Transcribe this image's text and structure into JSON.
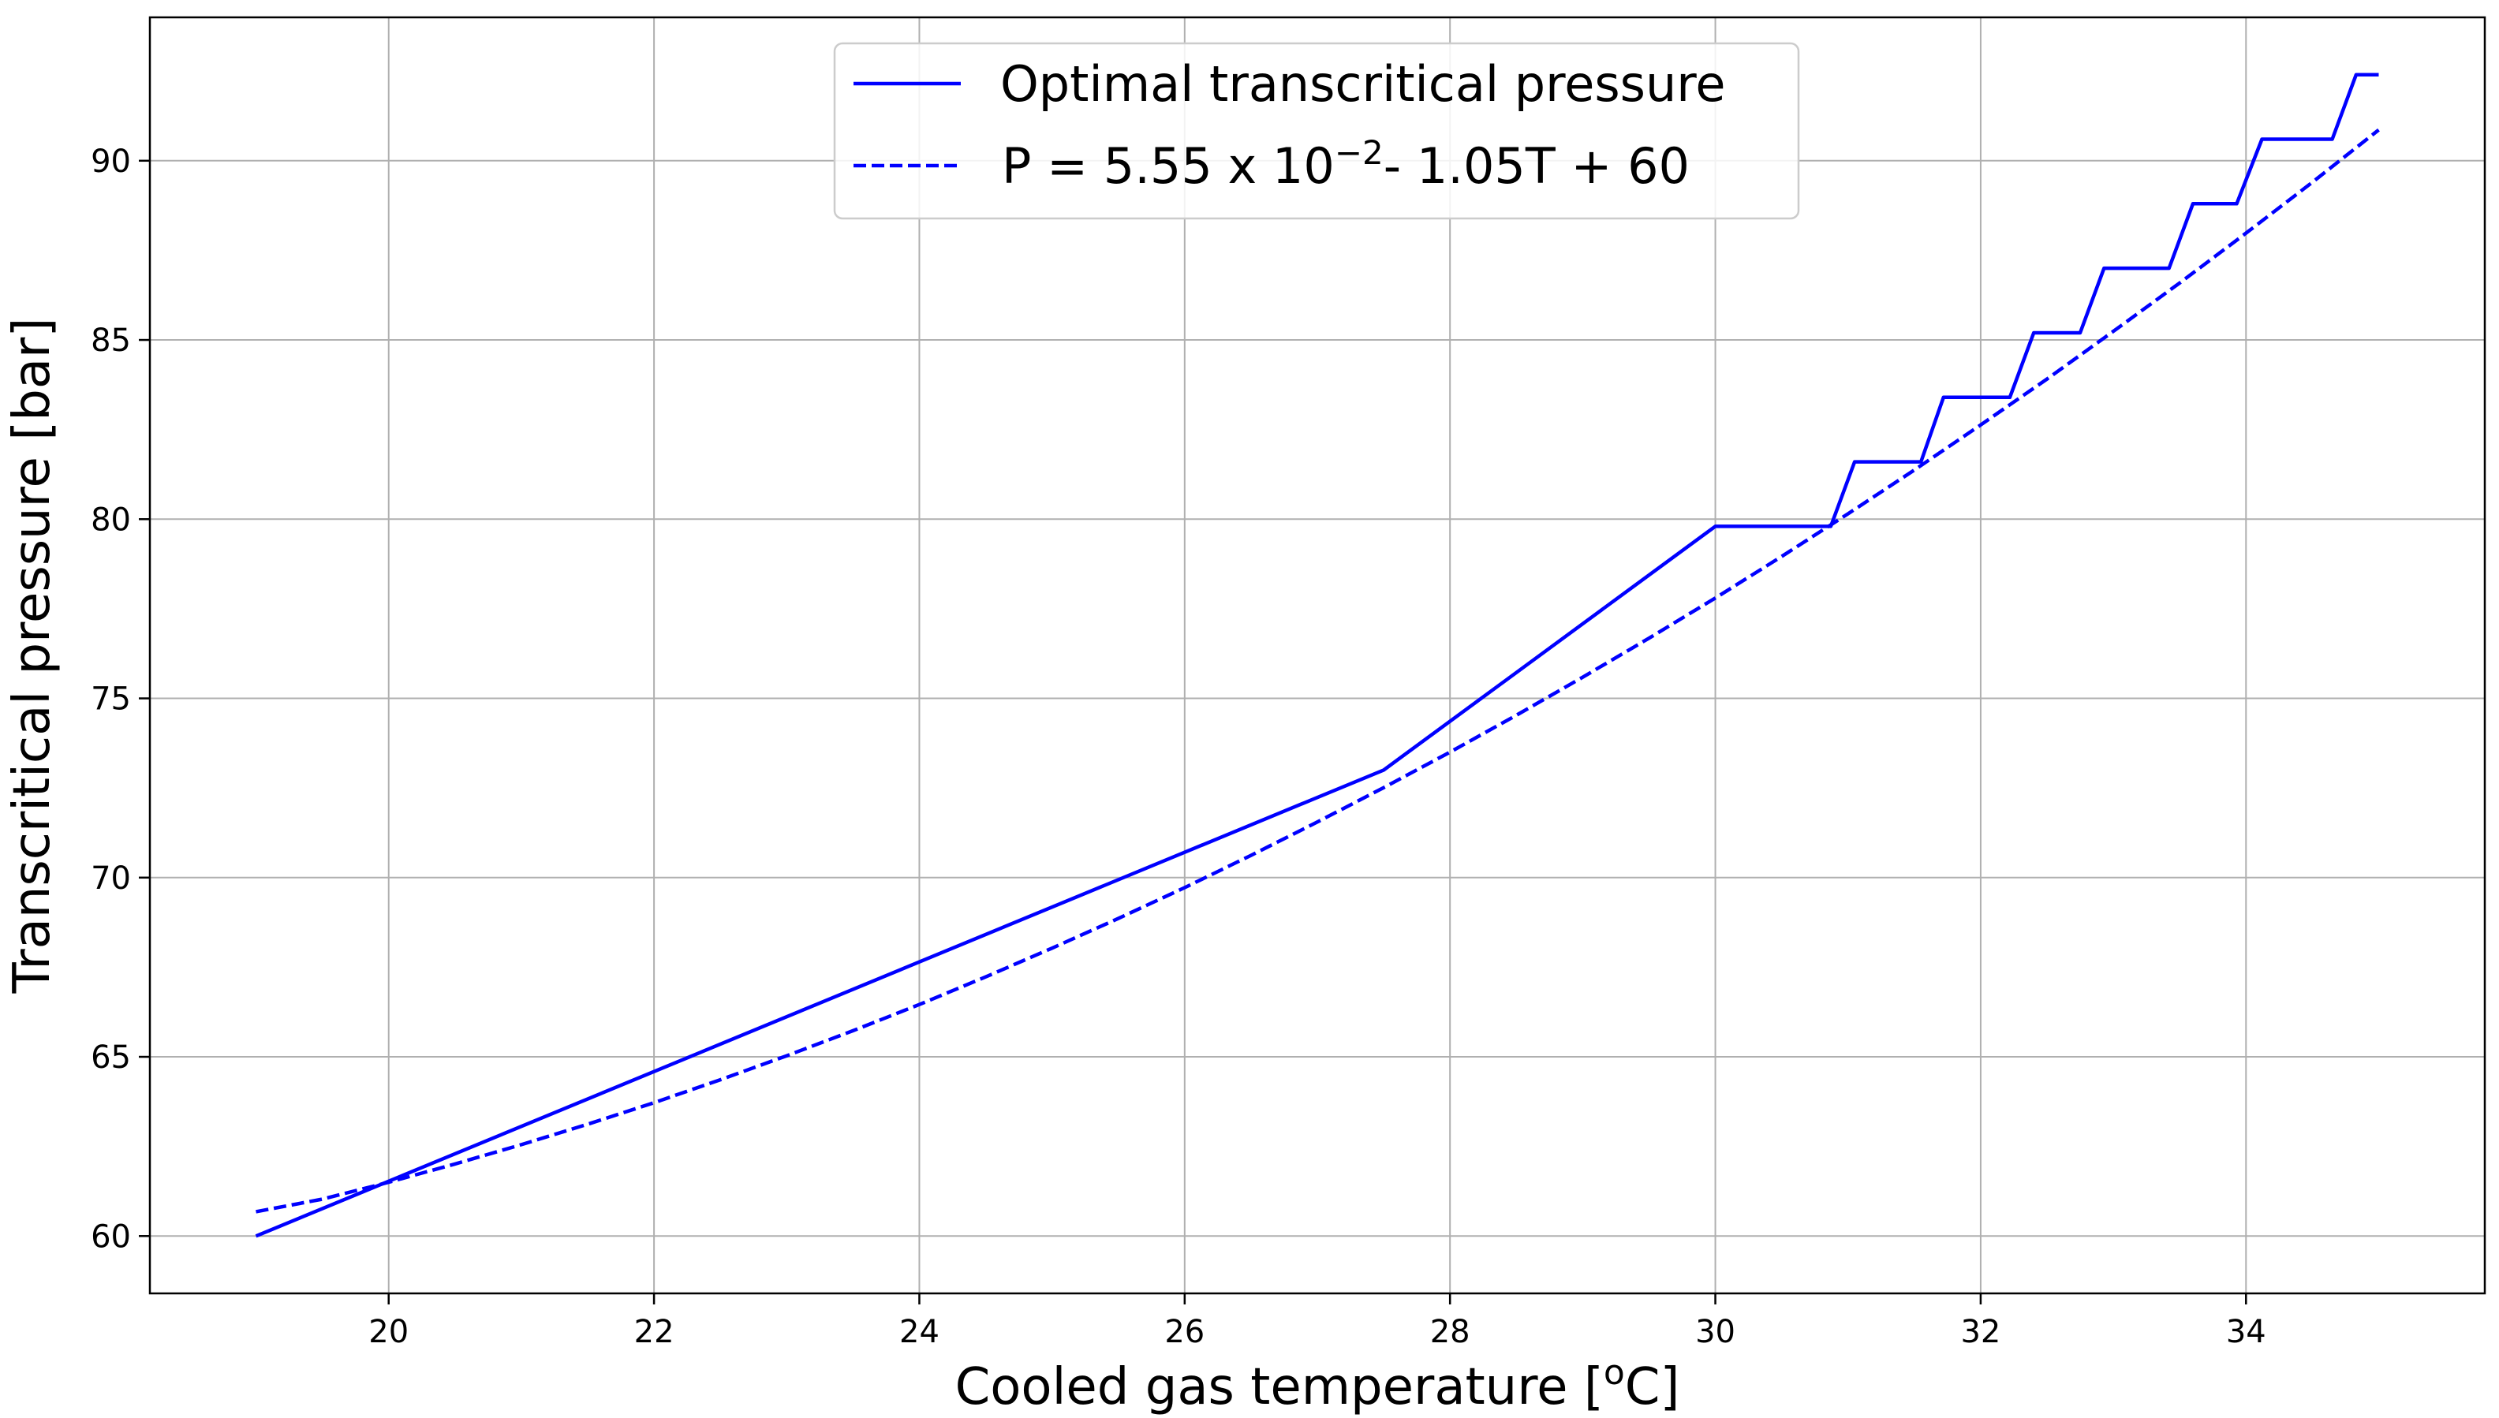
{
  "chart_data": {
    "type": "line",
    "title": "",
    "xlabel_main": "Cooled gas temperature [",
    "xlabel_sup": "o",
    "xlabel_end": "C]",
    "ylabel": "Transcritical pressure [bar]",
    "xlim": [
      18.2,
      35.8
    ],
    "ylim": [
      58.4,
      94.0
    ],
    "xticks": [
      20,
      22,
      24,
      26,
      28,
      30,
      32,
      34
    ],
    "yticks": [
      60,
      65,
      70,
      75,
      80,
      85,
      90
    ],
    "grid": true,
    "legend_position": "top-center",
    "line_color": "#0000ff",
    "series": [
      {
        "name": "Optimal transcritical pressure",
        "style": "solid",
        "x": [
          19.0,
          27.5,
          30.0,
          30.87,
          31.05,
          31.55,
          31.72,
          32.22,
          32.4,
          32.75,
          32.93,
          33.42,
          33.6,
          33.93,
          34.12,
          34.65,
          34.83,
          35.0
        ],
        "y": [
          60.0,
          73.0,
          79.8,
          79.8,
          81.6,
          81.6,
          83.4,
          83.4,
          85.2,
          85.2,
          87.0,
          87.0,
          88.8,
          88.8,
          90.6,
          90.6,
          92.4,
          92.4
        ]
      },
      {
        "name_main": "P = 5.55 x 10",
        "name_sup": "−2",
        "name_end": "- 1.05T + 60",
        "style": "dashed",
        "x": [
          19.0,
          19.5,
          20.0,
          20.5,
          21.0,
          21.5,
          22.0,
          22.5,
          23.0,
          23.5,
          24.0,
          24.5,
          25.0,
          25.5,
          26.0,
          26.5,
          27.0,
          27.5,
          28.0,
          28.5,
          29.0,
          29.5,
          30.0,
          30.5,
          31.0,
          31.5,
          32.0,
          32.5,
          33.0,
          33.5,
          34.0,
          34.5,
          35.0
        ],
        "y": [
          60.68,
          61.03,
          61.5,
          62.01,
          62.55,
          63.12,
          63.72,
          64.36,
          65.03,
          65.73,
          66.46,
          67.23,
          68.03,
          68.86,
          69.72,
          70.62,
          71.55,
          72.51,
          73.5,
          74.53,
          75.59,
          76.68,
          77.8,
          78.96,
          80.15,
          81.37,
          82.63,
          83.91,
          85.24,
          86.59,
          87.98,
          89.4,
          90.86
        ]
      }
    ]
  }
}
